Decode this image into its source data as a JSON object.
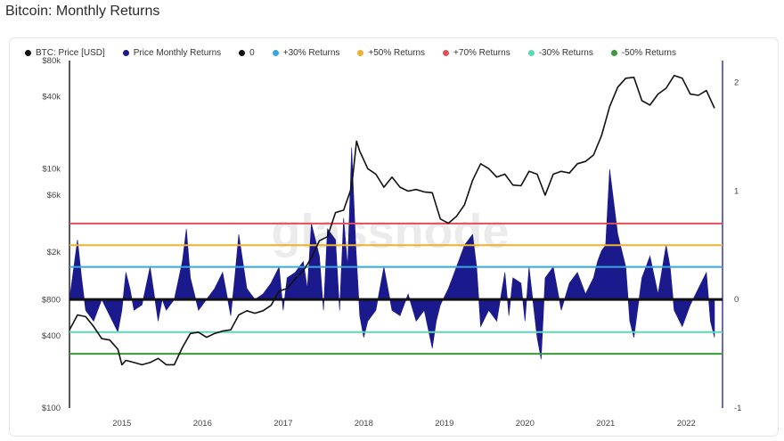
{
  "title": "Bitcoin: Monthly Returns",
  "watermark": "glassnode",
  "legend": [
    {
      "label": "BTC: Price [USD]",
      "color": "#111111"
    },
    {
      "label": "Price Monthly Returns",
      "color": "#1a1a8c"
    },
    {
      "label": "0",
      "color": "#111111"
    },
    {
      "label": "+30% Returns",
      "color": "#3aa6e0"
    },
    {
      "label": "+50% Returns",
      "color": "#f0b030"
    },
    {
      "label": "+70% Returns",
      "color": "#e0505a"
    },
    {
      "label": "-30% Returns",
      "color": "#5fd6b8"
    },
    {
      "label": "-50% Returns",
      "color": "#3a9a3a"
    }
  ],
  "chart_data": {
    "type": "line",
    "title": "Bitcoin: Monthly Returns",
    "x_ticks": [
      "2015",
      "2016",
      "2017",
      "2018",
      "2019",
      "2020",
      "2021",
      "2022"
    ],
    "x_range": [
      2014.4,
      2022.5
    ],
    "left_axis": {
      "scale": "log",
      "ticks": [
        "$100",
        "$400",
        "$800",
        "$2k",
        "$6k",
        "$10k",
        "$40k",
        "$80k"
      ],
      "tick_values": [
        100,
        400,
        800,
        2000,
        6000,
        10000,
        40000,
        80000
      ],
      "range": [
        100,
        80000
      ]
    },
    "right_axis": {
      "scale": "linear",
      "ticks": [
        "-1",
        "0",
        "1",
        "2"
      ],
      "tick_values": [
        -1,
        0,
        1,
        2
      ],
      "range": [
        -1,
        2.2
      ]
    },
    "reference_lines": [
      {
        "name": "0",
        "value": 0,
        "color": "#111111"
      },
      {
        "name": "+30% Returns",
        "value": 0.3,
        "color": "#3aa6e0"
      },
      {
        "name": "+50% Returns",
        "value": 0.5,
        "color": "#f0b030"
      },
      {
        "name": "+70% Returns",
        "value": 0.7,
        "color": "#e0505a"
      },
      {
        "name": "-30% Returns",
        "value": -0.3,
        "color": "#5fd6b8"
      },
      {
        "name": "-50% Returns",
        "value": -0.5,
        "color": "#3a9a3a"
      }
    ],
    "series": [
      {
        "name": "BTC: Price [USD]",
        "axis": "left",
        "color": "#111111",
        "x": [
          2014.4,
          2014.5,
          2014.6,
          2014.7,
          2014.8,
          2014.9,
          2015.0,
          2015.05,
          2015.1,
          2015.2,
          2015.3,
          2015.4,
          2015.5,
          2015.6,
          2015.7,
          2015.8,
          2015.9,
          2016.0,
          2016.1,
          2016.2,
          2016.3,
          2016.4,
          2016.5,
          2016.6,
          2016.7,
          2016.8,
          2016.9,
          2017.0,
          2017.1,
          2017.2,
          2017.3,
          2017.4,
          2017.5,
          2017.6,
          2017.7,
          2017.8,
          2017.9,
          2017.96,
          2018.0,
          2018.1,
          2018.2,
          2018.3,
          2018.4,
          2018.5,
          2018.6,
          2018.7,
          2018.8,
          2018.9,
          2019.0,
          2019.1,
          2019.2,
          2019.3,
          2019.4,
          2019.5,
          2019.6,
          2019.7,
          2019.8,
          2019.9,
          2020.0,
          2020.1,
          2020.2,
          2020.3,
          2020.4,
          2020.5,
          2020.6,
          2020.7,
          2020.8,
          2020.9,
          2021.0,
          2021.1,
          2021.2,
          2021.3,
          2021.4,
          2021.5,
          2021.6,
          2021.7,
          2021.8,
          2021.9,
          2022.0,
          2022.1,
          2022.2,
          2022.3,
          2022.4
        ],
        "values": [
          450,
          600,
          580,
          480,
          380,
          370,
          310,
          230,
          250,
          240,
          230,
          240,
          260,
          230,
          230,
          320,
          420,
          430,
          390,
          420,
          440,
          450,
          600,
          650,
          620,
          650,
          720,
          950,
          1000,
          1200,
          1400,
          1800,
          2500,
          2700,
          4300,
          4500,
          7000,
          17000,
          14000,
          10000,
          9000,
          7000,
          8500,
          7000,
          6500,
          6700,
          6400,
          6300,
          3800,
          3500,
          4000,
          5000,
          8000,
          11000,
          10000,
          8500,
          9000,
          7300,
          7200,
          9500,
          9000,
          6000,
          9000,
          9500,
          9200,
          11000,
          11500,
          13000,
          19000,
          33000,
          48000,
          57000,
          58000,
          37000,
          34000,
          42000,
          47000,
          60000,
          57000,
          42000,
          41000,
          45000,
          32000
        ]
      },
      {
        "name": "Price Monthly Returns",
        "axis": "right",
        "type": "area",
        "color": "#1a1a8c",
        "x": [
          2014.4,
          2014.5,
          2014.55,
          2014.6,
          2014.7,
          2014.8,
          2014.9,
          2015.0,
          2015.05,
          2015.1,
          2015.15,
          2015.2,
          2015.3,
          2015.4,
          2015.5,
          2015.55,
          2015.6,
          2015.7,
          2015.8,
          2015.85,
          2015.9,
          2016.0,
          2016.1,
          2016.2,
          2016.3,
          2016.4,
          2016.45,
          2016.5,
          2016.6,
          2016.7,
          2016.8,
          2016.9,
          2017.0,
          2017.05,
          2017.1,
          2017.2,
          2017.3,
          2017.35,
          2017.4,
          2017.5,
          2017.55,
          2017.6,
          2017.7,
          2017.75,
          2017.8,
          2017.85,
          2017.9,
          2017.95,
          2018.0,
          2018.05,
          2018.1,
          2018.2,
          2018.3,
          2018.4,
          2018.5,
          2018.6,
          2018.7,
          2018.8,
          2018.9,
          2018.95,
          2019.0,
          2019.1,
          2019.2,
          2019.3,
          2019.4,
          2019.45,
          2019.5,
          2019.6,
          2019.7,
          2019.8,
          2019.85,
          2019.9,
          2020.0,
          2020.05,
          2020.1,
          2020.2,
          2020.25,
          2020.3,
          2020.4,
          2020.5,
          2020.6,
          2020.7,
          2020.8,
          2020.9,
          2020.95,
          2021.0,
          2021.05,
          2021.1,
          2021.2,
          2021.3,
          2021.35,
          2021.4,
          2021.5,
          2021.6,
          2021.7,
          2021.8,
          2021.85,
          2021.9,
          2022.0,
          2022.1,
          2022.2,
          2022.3,
          2022.35,
          2022.4
        ],
        "values": [
          0.0,
          0.55,
          0.2,
          -0.1,
          -0.2,
          0.0,
          -0.15,
          -0.3,
          -0.1,
          0.25,
          0.1,
          -0.1,
          -0.05,
          0.3,
          -0.2,
          0.0,
          -0.1,
          0.0,
          0.35,
          0.65,
          0.2,
          -0.1,
          0.0,
          0.1,
          0.25,
          -0.15,
          0.2,
          0.6,
          0.1,
          0.0,
          0.05,
          0.15,
          0.3,
          -0.1,
          0.2,
          0.25,
          0.35,
          0.1,
          0.7,
          0.4,
          -0.1,
          0.65,
          0.55,
          -0.1,
          0.75,
          0.3,
          1.4,
          0.5,
          -0.15,
          -0.35,
          -0.2,
          -0.1,
          0.3,
          -0.1,
          -0.15,
          0.05,
          -0.2,
          -0.1,
          -0.45,
          -0.2,
          -0.05,
          0.1,
          0.3,
          0.5,
          0.6,
          0.3,
          -0.25,
          -0.1,
          -0.2,
          0.25,
          -0.15,
          0.2,
          0.15,
          -0.2,
          0.3,
          -0.35,
          -0.55,
          0.2,
          0.3,
          -0.1,
          0.15,
          0.25,
          0.05,
          0.2,
          0.35,
          0.45,
          0.5,
          1.2,
          0.6,
          0.3,
          -0.2,
          -0.35,
          0.2,
          0.4,
          0.05,
          0.5,
          0.3,
          -0.1,
          -0.25,
          -0.05,
          0.1,
          0.25,
          -0.2,
          -0.35
        ]
      }
    ],
    "legend_position": "top-left",
    "grid": false
  }
}
